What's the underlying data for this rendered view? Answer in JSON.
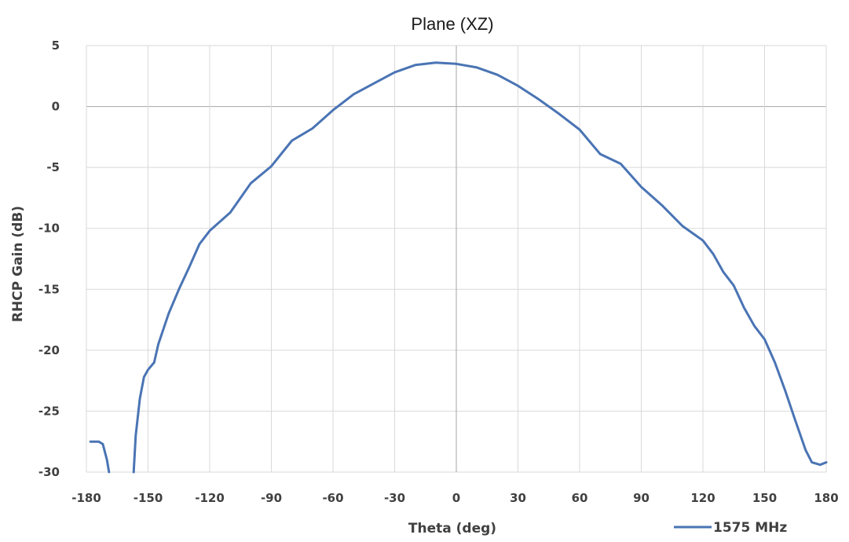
{
  "chart_data": {
    "type": "line",
    "title": "Plane (XZ)",
    "xlabel": "Theta (deg)",
    "ylabel": "RHCP Gain (dB)",
    "xlim": [
      -180,
      180
    ],
    "ylim": [
      -30,
      5
    ],
    "xticks": [
      -180,
      -150,
      -120,
      -90,
      -60,
      -30,
      0,
      30,
      60,
      90,
      120,
      150,
      180
    ],
    "yticks": [
      5,
      0,
      -5,
      -10,
      -15,
      -20,
      -25,
      -30
    ],
    "grid": true,
    "legend": "bottom-right",
    "series": [
      {
        "name": "1575 MHz",
        "color": "#4a74b4",
        "segments": [
          [
            [
              -178,
              -27.5
            ],
            [
              -174,
              -27.5
            ],
            [
              -172,
              -27.7
            ],
            [
              -170,
              -29
            ],
            [
              -169,
              -30
            ]
          ],
          [
            [
              -157,
              -30
            ],
            [
              -156,
              -27
            ],
            [
              -154,
              -24
            ],
            [
              -152,
              -22.2
            ],
            [
              -150,
              -21.6
            ],
            [
              -147,
              -21
            ],
            [
              -145,
              -19.5
            ],
            [
              -140,
              -17
            ],
            [
              -135,
              -15
            ],
            [
              -130,
              -13.2
            ],
            [
              -125,
              -11.3
            ],
            [
              -120,
              -10.2
            ],
            [
              -110,
              -8.7
            ],
            [
              -100,
              -6.3
            ],
            [
              -90,
              -4.9
            ],
            [
              -80,
              -2.8
            ],
            [
              -70,
              -1.8
            ],
            [
              -60,
              -0.3
            ],
            [
              -50,
              1
            ],
            [
              -40,
              1.9
            ],
            [
              -30,
              2.8
            ],
            [
              -20,
              3.4
            ],
            [
              -10,
              3.6
            ],
            [
              0,
              3.5
            ],
            [
              10,
              3.2
            ],
            [
              20,
              2.6
            ],
            [
              30,
              1.7
            ],
            [
              40,
              0.6
            ],
            [
              50,
              -0.6
            ],
            [
              60,
              -1.9
            ],
            [
              70,
              -3.9
            ],
            [
              80,
              -4.7
            ],
            [
              90,
              -6.6
            ],
            [
              100,
              -8.1
            ],
            [
              110,
              -9.8
            ],
            [
              120,
              -11
            ],
            [
              125,
              -12.1
            ],
            [
              130,
              -13.6
            ],
            [
              135,
              -14.7
            ],
            [
              140,
              -16.5
            ],
            [
              145,
              -18
            ],
            [
              150,
              -19.1
            ],
            [
              155,
              -21
            ],
            [
              160,
              -23.3
            ],
            [
              165,
              -25.8
            ],
            [
              170,
              -28.2
            ],
            [
              173,
              -29.2
            ],
            [
              177,
              -29.4
            ],
            [
              180,
              -29.2
            ]
          ]
        ]
      }
    ]
  }
}
